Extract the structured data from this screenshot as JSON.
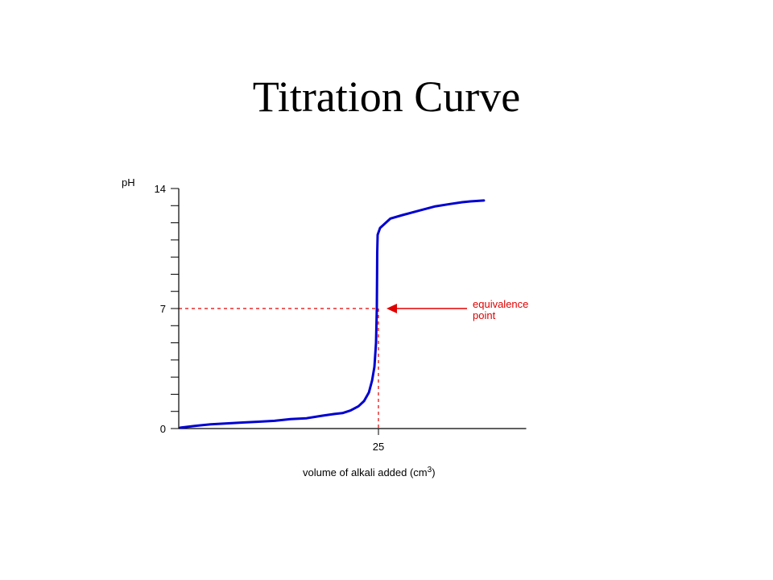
{
  "title": "Titration Curve",
  "chart_data": {
    "type": "line",
    "ylabel": "pH",
    "xlabel": "volume of alkali added (cm",
    "xlabel_sup": "3",
    "xlabel_close": ")",
    "ylim": [
      0,
      14
    ],
    "xlim": [
      0,
      43.5
    ],
    "y_ticks_labeled": [
      {
        "value": 0,
        "label": "0"
      },
      {
        "value": 7,
        "label": "7"
      },
      {
        "value": 14,
        "label": "14"
      }
    ],
    "y_minor_tick_values": [
      1,
      2,
      3,
      4,
      5,
      6,
      8,
      9,
      10,
      11,
      12,
      13
    ],
    "x_ticks_labeled": [
      {
        "value": 25,
        "label": "25"
      }
    ],
    "series": [
      {
        "color": "#0000d0",
        "points": [
          [
            0.2,
            0.05
          ],
          [
            2,
            0.15
          ],
          [
            4,
            0.25
          ],
          [
            6,
            0.3
          ],
          [
            8,
            0.35
          ],
          [
            10,
            0.4
          ],
          [
            12,
            0.45
          ],
          [
            14,
            0.55
          ],
          [
            16,
            0.6
          ],
          [
            18,
            0.75
          ],
          [
            19.5,
            0.85
          ],
          [
            20.5,
            0.9
          ],
          [
            21.5,
            1.05
          ],
          [
            22.5,
            1.3
          ],
          [
            23.2,
            1.6
          ],
          [
            23.8,
            2.1
          ],
          [
            24.2,
            2.8
          ],
          [
            24.5,
            3.6
          ],
          [
            24.7,
            5.0
          ],
          [
            24.8,
            7.0
          ],
          [
            24.85,
            10.3
          ],
          [
            24.9,
            11.3
          ],
          [
            25.2,
            11.7
          ],
          [
            25.8,
            11.95
          ],
          [
            26.5,
            12.25
          ],
          [
            28,
            12.45
          ],
          [
            30,
            12.7
          ],
          [
            32,
            12.95
          ],
          [
            34,
            13.1
          ],
          [
            35.5,
            13.2
          ],
          [
            36.5,
            13.25
          ],
          [
            38.2,
            13.3
          ]
        ]
      }
    ],
    "annotation": {
      "label_line1": "equivalence",
      "label_line2": "point",
      "x": 25,
      "y": 7,
      "color": "#e00000"
    }
  }
}
